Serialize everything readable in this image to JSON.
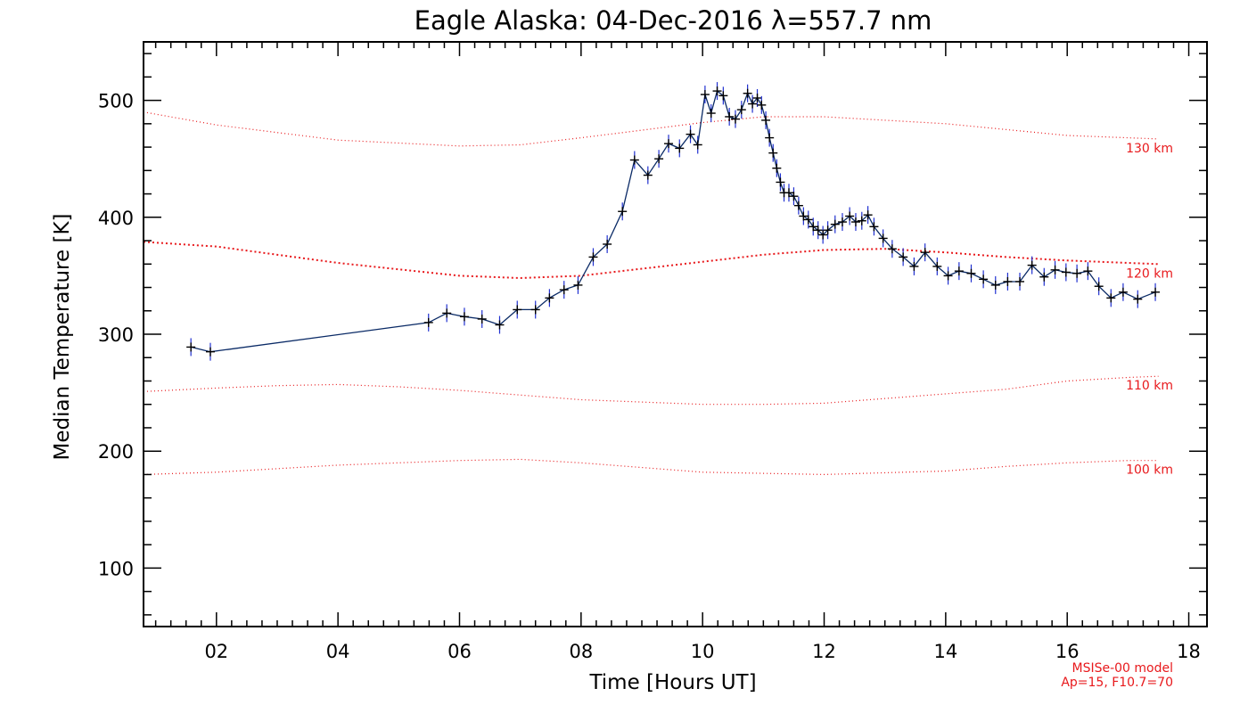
{
  "chart_data": {
    "type": "line",
    "title": "Eagle Alaska: 04-Dec-2016 λ=557.7 nm",
    "xlabel": "Time [Hours UT]",
    "ylabel": "Median Temperature [K]",
    "xlim": [
      0.8,
      18.3
    ],
    "ylim": [
      50,
      550
    ],
    "x_ticks": [
      2,
      4,
      6,
      8,
      10,
      12,
      14,
      16,
      18
    ],
    "x_tick_labels": [
      "02",
      "04",
      "06",
      "08",
      "10",
      "12",
      "14",
      "16",
      "18"
    ],
    "y_ticks": [
      100,
      200,
      300,
      400,
      500
    ],
    "y_tick_labels": [
      "100",
      "200",
      "300",
      "400",
      "500"
    ],
    "grid": false,
    "colors": {
      "measurement": "#0a2a66",
      "error_bar": "#2030d0",
      "model": "#e8191c"
    },
    "series": [
      {
        "x": [
          1.58,
          1.9,
          5.49,
          5.79,
          6.08,
          6.37,
          6.66,
          6.95,
          7.25,
          7.48,
          7.72,
          7.95,
          8.2,
          8.43,
          8.68,
          8.88,
          9.1,
          9.28,
          9.44,
          9.62,
          9.8,
          9.92,
          10.04,
          10.14,
          10.24,
          10.34,
          10.44,
          10.54,
          10.64,
          10.74,
          10.82,
          10.9,
          10.97,
          11.04,
          11.1,
          11.16,
          11.22,
          11.28,
          11.34,
          11.42,
          11.5,
          11.58,
          11.66,
          11.74,
          11.82,
          11.9,
          11.98,
          12.06,
          12.18,
          12.3,
          12.42,
          12.52,
          12.62,
          12.72,
          12.82,
          12.97,
          13.12,
          13.3,
          13.48,
          13.66,
          13.86,
          14.04,
          14.22,
          14.42,
          14.62,
          14.82,
          15.02,
          15.22,
          15.42,
          15.62,
          15.8,
          15.98,
          16.16,
          16.34,
          16.52,
          16.72,
          16.92,
          17.16,
          17.45
        ],
        "values": [
          289,
          285,
          310,
          318,
          315,
          313,
          308,
          321,
          321,
          331,
          338,
          342,
          366,
          377,
          405,
          449,
          436,
          450,
          463,
          459,
          471,
          462,
          505,
          489,
          508,
          504,
          486,
          484,
          492,
          506,
          497,
          502,
          496,
          483,
          468,
          455,
          442,
          430,
          421,
          421,
          418,
          410,
          401,
          398,
          392,
          389,
          385,
          389,
          394,
          396,
          401,
          396,
          397,
          402,
          392,
          382,
          373,
          366,
          358,
          370,
          358,
          350,
          354,
          352,
          347,
          342,
          345,
          345,
          359,
          349,
          355,
          353,
          352,
          354,
          341,
          331,
          336,
          330,
          336
        ]
      }
    ],
    "model_curves": [
      {
        "label": "130 km",
        "x": [
          0.8,
          2,
          4,
          6,
          7,
          8,
          10,
          11,
          12,
          14,
          16,
          17,
          17.5
        ],
        "values": [
          490,
          479,
          466,
          461,
          462,
          468,
          481,
          486,
          486,
          480,
          470,
          468,
          467
        ]
      },
      {
        "label": "120 km",
        "x": [
          0.8,
          2,
          4,
          6,
          7,
          8,
          9,
          10,
          11,
          12,
          13,
          14,
          15,
          16,
          17,
          17.5
        ],
        "values": [
          379,
          375,
          361,
          350,
          348,
          350,
          356,
          362,
          368,
          372,
          373,
          370,
          366,
          363,
          361,
          360
        ]
      },
      {
        "label": "110 km",
        "x": [
          0.8,
          2,
          3,
          4,
          5,
          6,
          8,
          10,
          11,
          12,
          14,
          15,
          16,
          17,
          17.5
        ],
        "values": [
          251,
          254,
          256,
          257,
          255,
          252,
          244,
          240,
          240,
          241,
          249,
          253,
          260,
          263,
          264
        ]
      },
      {
        "label": "100 km",
        "x": [
          0.8,
          2,
          4,
          6,
          7,
          8,
          10,
          12,
          14,
          15,
          16,
          17,
          17.5
        ],
        "values": [
          180,
          182,
          188,
          192,
          193,
          190,
          182,
          180,
          183,
          187,
          190,
          192,
          192
        ]
      }
    ],
    "note_lines": [
      "MSISe-00 model",
      "Ap=15, F10.7=70"
    ]
  }
}
